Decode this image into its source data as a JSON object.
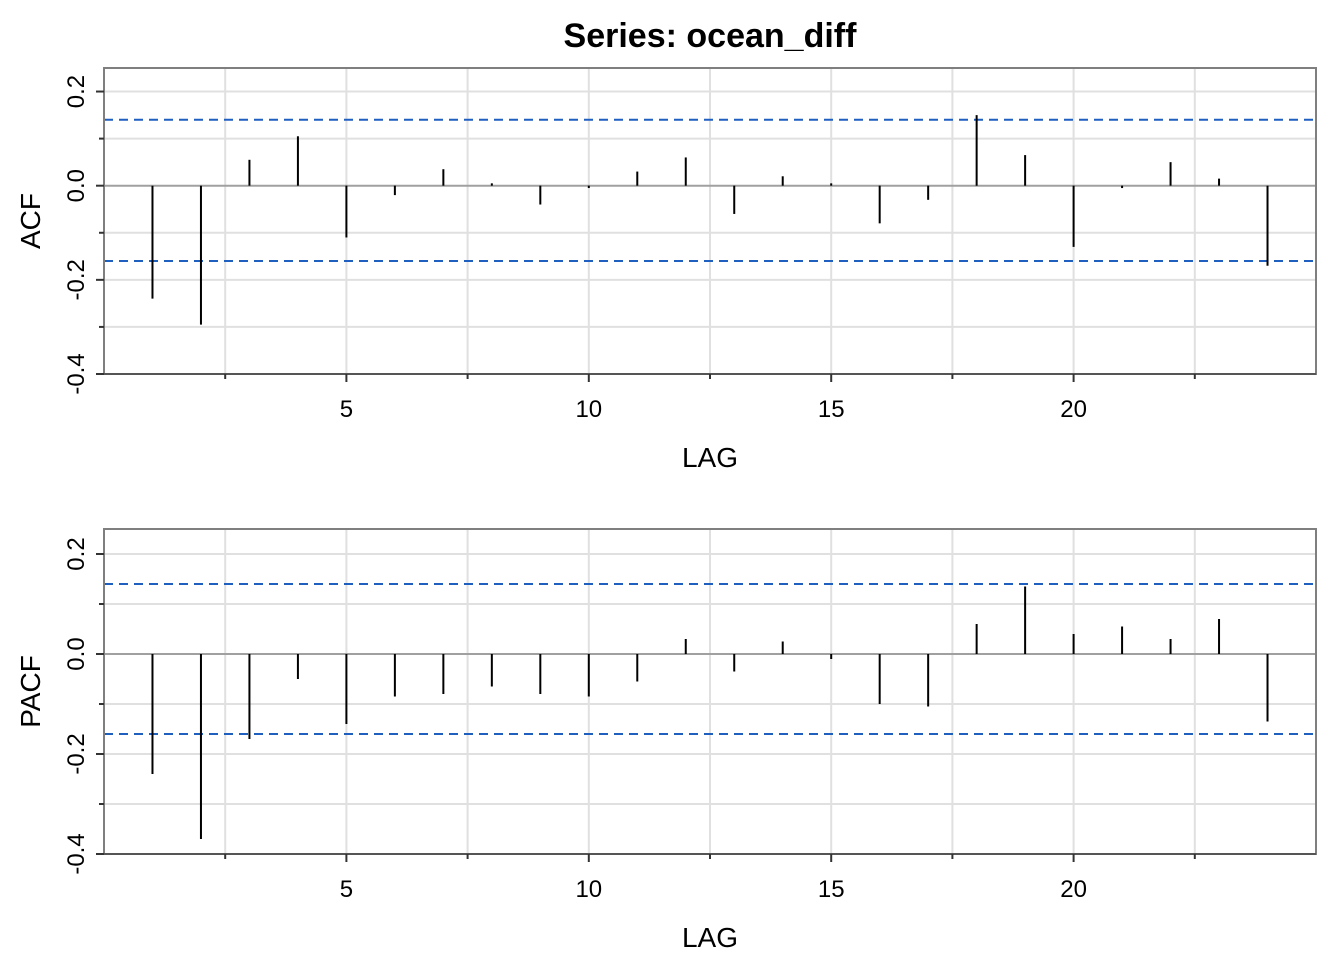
{
  "title": "Series:  ocean_diff",
  "chart_data": [
    {
      "type": "bar",
      "ylabel": "ACF",
      "xlabel": "LAG",
      "xlim": [
        0,
        25
      ],
      "ylim": [
        -0.4,
        0.25
      ],
      "x_ticks": [
        5,
        10,
        15,
        20
      ],
      "y_ticks": [
        -0.4,
        -0.2,
        0.0,
        0.2
      ],
      "grid": true,
      "confidence_bounds": [
        0.14,
        -0.16
      ],
      "lags": [
        1,
        2,
        3,
        4,
        5,
        6,
        7,
        8,
        9,
        10,
        11,
        12,
        13,
        14,
        15,
        16,
        17,
        18,
        19,
        20,
        21,
        22,
        23,
        24
      ],
      "values": [
        -0.24,
        -0.295,
        0.055,
        0.105,
        -0.11,
        -0.02,
        0.035,
        0.005,
        -0.04,
        -0.005,
        0.03,
        0.06,
        -0.06,
        0.02,
        0.005,
        -0.08,
        -0.03,
        0.15,
        0.065,
        -0.13,
        -0.005,
        0.05,
        0.015,
        -0.17
      ]
    },
    {
      "type": "bar",
      "ylabel": "PACF",
      "xlabel": "LAG",
      "xlim": [
        0,
        25
      ],
      "ylim": [
        -0.4,
        0.25
      ],
      "x_ticks": [
        5,
        10,
        15,
        20
      ],
      "y_ticks": [
        -0.4,
        -0.2,
        0.0,
        0.2
      ],
      "grid": true,
      "confidence_bounds": [
        0.14,
        -0.16
      ],
      "lags": [
        1,
        2,
        3,
        4,
        5,
        6,
        7,
        8,
        9,
        10,
        11,
        12,
        13,
        14,
        15,
        16,
        17,
        18,
        19,
        20,
        21,
        22,
        23,
        24
      ],
      "values": [
        -0.24,
        -0.37,
        -0.17,
        -0.05,
        -0.14,
        -0.085,
        -0.08,
        -0.065,
        -0.08,
        -0.085,
        -0.055,
        0.03,
        -0.035,
        0.025,
        -0.01,
        -0.1,
        -0.105,
        0.06,
        0.135,
        0.04,
        0.055,
        0.03,
        0.07,
        -0.135
      ]
    }
  ],
  "colors": {
    "spike": "#000000",
    "bound": "#1f5fbf",
    "grid": "#e0e0e0",
    "zero_line": "#a0a0a0",
    "frame": "#7f7f7f"
  }
}
